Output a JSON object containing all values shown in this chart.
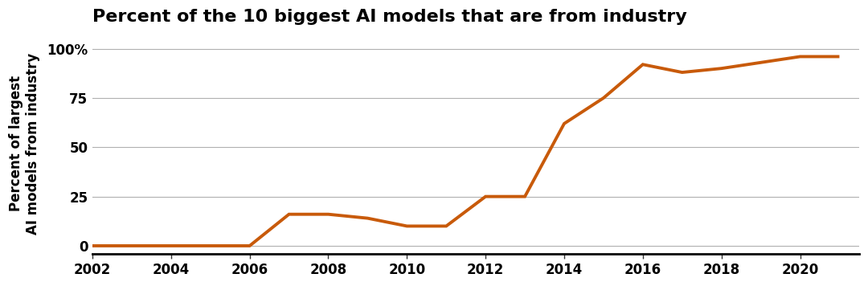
{
  "title": "Percent of the 10 biggest AI models that are from industry",
  "ylabel_line1": "Percent of largest",
  "ylabel_line2": "AI models from industry",
  "line_color": "#C85A0A",
  "background_color": "#ffffff",
  "grid_color": "#b0b0b0",
  "x_data": [
    2002,
    2003,
    2004,
    2005,
    2006,
    2007,
    2008,
    2009,
    2010,
    2011,
    2012,
    2013,
    2014,
    2015,
    2016,
    2017,
    2018,
    2019,
    2020,
    2021
  ],
  "y_data": [
    0,
    0,
    0,
    0,
    0,
    16,
    16,
    14,
    10,
    10,
    25,
    25,
    62,
    75,
    92,
    88,
    90,
    93,
    96,
    96
  ],
  "xlim": [
    2002,
    2021.5
  ],
  "ylim": [
    -4,
    108
  ],
  "yticks": [
    0,
    25,
    50,
    75,
    100
  ],
  "ytick_labels": [
    "0",
    "25",
    "50",
    "75",
    "100%"
  ],
  "xticks": [
    2002,
    2004,
    2006,
    2008,
    2010,
    2012,
    2014,
    2016,
    2018,
    2020
  ],
  "line_width": 2.8,
  "title_fontsize": 16,
  "ylabel_fontsize": 12,
  "tick_fontsize": 12,
  "title_fontweight": "bold",
  "bottom_spine_color": "#000000",
  "bottom_spine_linewidth": 2.0
}
